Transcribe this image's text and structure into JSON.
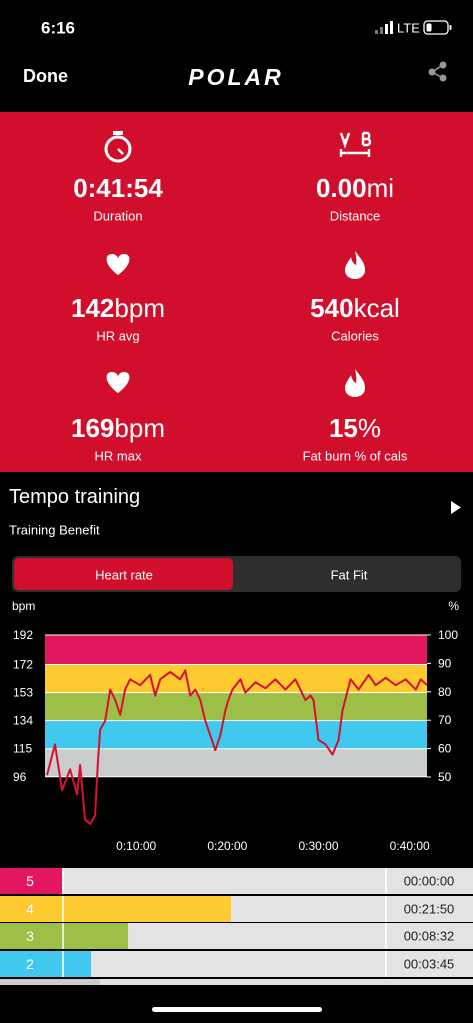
{
  "status": {
    "time": "6:16",
    "network": "LTE"
  },
  "nav": {
    "done": "Done",
    "logo": "POLAR"
  },
  "stats": [
    {
      "value": "0:41:54",
      "label": "Duration"
    },
    {
      "value": "0.00",
      "unit": "mi",
      "label": "Distance"
    },
    {
      "value": "142",
      "unit": "bpm",
      "label": "HR avg"
    },
    {
      "value": "540",
      "unit": "kcal",
      "label": "Calories"
    },
    {
      "value": "169",
      "unit": "bpm",
      "label": "HR max"
    },
    {
      "value": "15",
      "unit": "%",
      "label": "Fat burn % of cals"
    }
  ],
  "session": {
    "title": "Tempo training",
    "subtitle": "Training Benefit"
  },
  "tabs": [
    "Heart rate",
    "Fat Fit"
  ],
  "chart": {
    "y_unit": "bpm",
    "y2_unit": "%",
    "xlim": [
      0,
      2514
    ],
    "ylim": [
      62,
      192
    ],
    "y2lim": [
      32.4,
      100
    ],
    "yticks": [
      96,
      115,
      134,
      153,
      172,
      192
    ],
    "y2ticks": [
      50,
      60,
      70,
      80,
      90,
      100
    ],
    "xticks": [
      {
        "value": 600,
        "label": "0:10:00"
      },
      {
        "value": 1200,
        "label": "0:20:00"
      },
      {
        "value": 1800,
        "label": "0:30:00"
      },
      {
        "value": 2400,
        "label": "0:40:00"
      }
    ],
    "zone_colors": [
      "#c9cdcd",
      "#40c8ee",
      "#9dbe47",
      "#fdca30",
      "#e2175f"
    ],
    "line_color": "#d8102e",
    "x": [
      13,
      66,
      112,
      165,
      211,
      231,
      264,
      297,
      330,
      349,
      363,
      396,
      429,
      462,
      495,
      527,
      560,
      626,
      692,
      725,
      758,
      824,
      890,
      923,
      956,
      989,
      1022,
      1055,
      1088,
      1121,
      1154,
      1187,
      1207,
      1233,
      1286,
      1319,
      1385,
      1451,
      1516,
      1582,
      1648,
      1714,
      1747,
      1767,
      1800,
      1846,
      1892,
      1932,
      1958,
      2011,
      2064,
      2130,
      2176,
      2242,
      2308,
      2374,
      2440,
      2473,
      2514
    ],
    "values": [
      97,
      118,
      87,
      101,
      84,
      104,
      67,
      64,
      70,
      107,
      128,
      134,
      155,
      148,
      138,
      155,
      162,
      158,
      165,
      151,
      162,
      167,
      162,
      168,
      151,
      155,
      148,
      134,
      124,
      114,
      124,
      141,
      148,
      155,
      162,
      153,
      160,
      156,
      162,
      155,
      162,
      148,
      151,
      148,
      121,
      118,
      111,
      121,
      141,
      162,
      155,
      165,
      158,
      163,
      158,
      162,
      155,
      162,
      158
    ]
  },
  "zones": [
    {
      "zone": "5",
      "time": "00:00:00",
      "color": "#e2175f"
    },
    {
      "zone": "4",
      "time": "00:21:50",
      "color": "#fdca30"
    },
    {
      "zone": "3",
      "time": "00:08:32",
      "color": "#9dbe47"
    },
    {
      "zone": "2",
      "time": "00:03:45",
      "color": "#40c8ee"
    }
  ]
}
